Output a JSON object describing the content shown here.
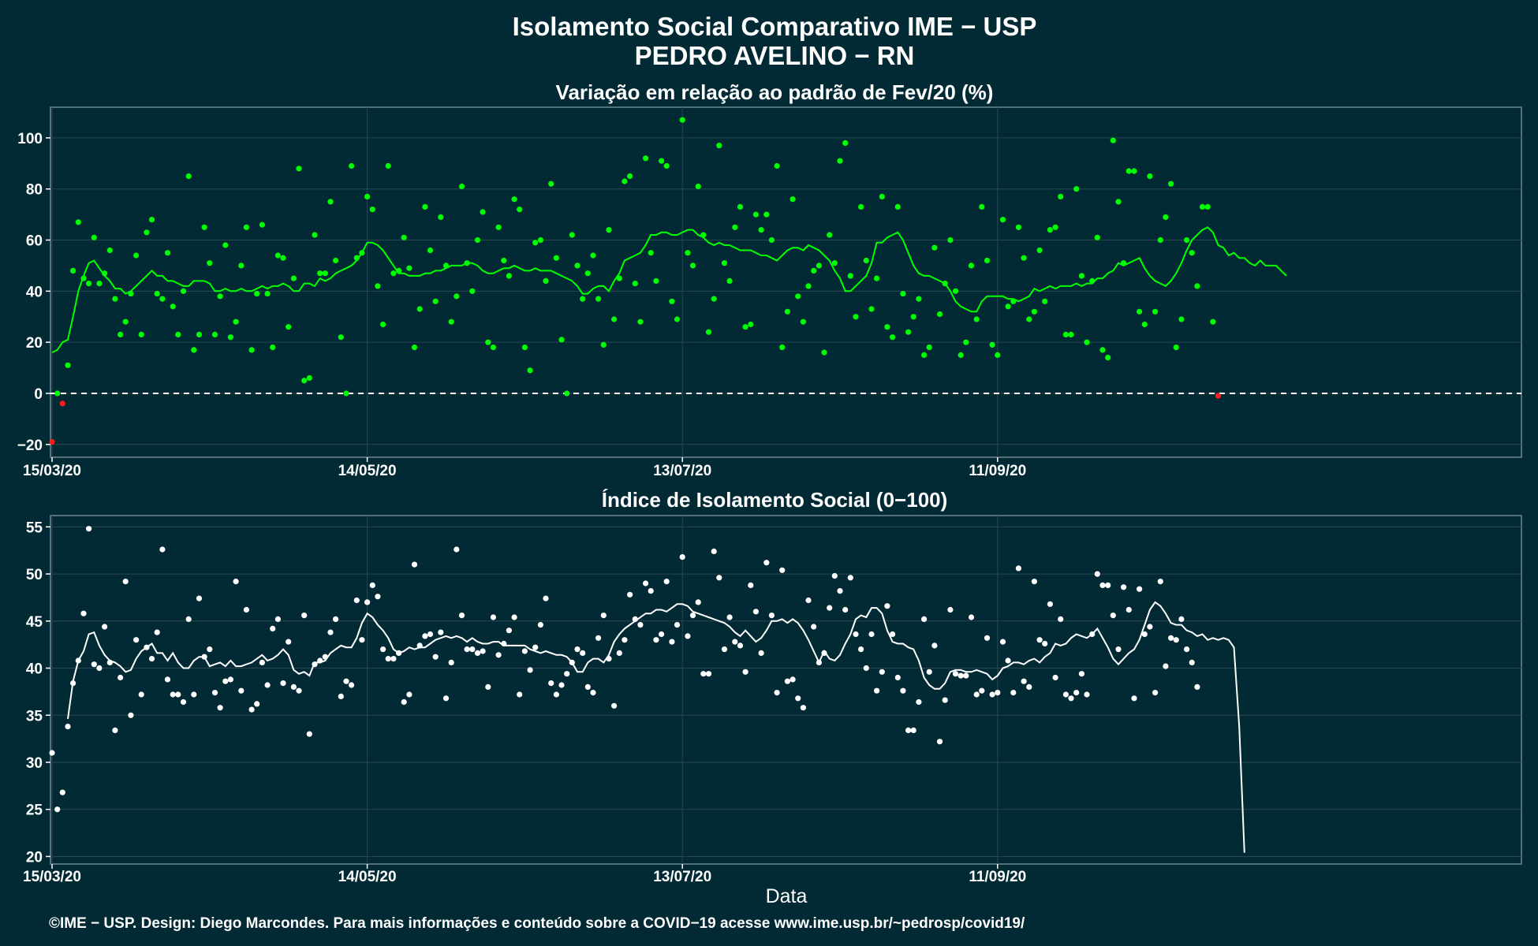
{
  "header": {
    "title_line1": "Isolamento Social Comparativo IME − USP",
    "title_line2": "PEDRO AVELINO − RN"
  },
  "footer": {
    "credit": "©IME − USP. Design: Diego Marcondes. Para mais informações e conteúdo sobre a COVID−19 acesse www.ime.usp.br/~pedrosp/covid19/"
  },
  "colors": {
    "background": "#022a35",
    "positive": "#00ff00",
    "negative": "#ff1a1a",
    "index": "#ffffff",
    "grid": "#2a4650"
  },
  "chart_data": [
    {
      "type": "scatter",
      "title": "Variação em relação ao padrão de Fev/20 (%)",
      "xlabel": "",
      "ylabel": "",
      "x_start": "15/03/20",
      "x_ticks": [
        {
          "day": 0,
          "label": "15/03/20"
        },
        {
          "day": 60,
          "label": "14/05/20"
        },
        {
          "day": 120,
          "label": "13/07/20"
        },
        {
          "day": 180,
          "label": "11/09/20"
        }
      ],
      "ylim": [
        -25,
        112
      ],
      "y_ticks": [
        -20,
        0,
        20,
        40,
        60,
        80,
        100
      ],
      "reference_line": {
        "y": 0,
        "style": "dashed"
      },
      "grid": true,
      "series": [
        {
          "kind": "points",
          "values": [
            -19,
            0,
            -4,
            11,
            48,
            67,
            45,
            43,
            61,
            43,
            47,
            56,
            37,
            23,
            28,
            39,
            54,
            23,
            63,
            68,
            39,
            37,
            55,
            34,
            23,
            40,
            85,
            17,
            23,
            65,
            51,
            23,
            38,
            58,
            22,
            28,
            50,
            65,
            17,
            39,
            66,
            39,
            18,
            54,
            53,
            26,
            45,
            88,
            5,
            6,
            62,
            47,
            47,
            75,
            52,
            22,
            0,
            89,
            53,
            55,
            77,
            72,
            42,
            27,
            89,
            47,
            48,
            61,
            49,
            18,
            33,
            73,
            56,
            36,
            69,
            50,
            28,
            38,
            81,
            51,
            40,
            60,
            71,
            20,
            18,
            65,
            52,
            46,
            76,
            72,
            18,
            9,
            59,
            60,
            44,
            82,
            53,
            21,
            0,
            62,
            50,
            37,
            47,
            54,
            37,
            19,
            64,
            29,
            45,
            83,
            85,
            43,
            28,
            92,
            55,
            44,
            91,
            89,
            36,
            29,
            107,
            55,
            50,
            81,
            62,
            24,
            37,
            97,
            51,
            44,
            65,
            73,
            26,
            27,
            70,
            64,
            70,
            60,
            89,
            18,
            32,
            76,
            38,
            28,
            42,
            48,
            50,
            16,
            62,
            51,
            91,
            98,
            46,
            30,
            73,
            52,
            33,
            45,
            77,
            26,
            22,
            73,
            39,
            24,
            30,
            37,
            15,
            18,
            57,
            31,
            43,
            60,
            40,
            15,
            20,
            50,
            29,
            73,
            52,
            19,
            15,
            68,
            34,
            36,
            65,
            53,
            29,
            32,
            56,
            36,
            64,
            65,
            77,
            23,
            23,
            80,
            46,
            20,
            44,
            61,
            17,
            14,
            99,
            75,
            51,
            87,
            87,
            32,
            27,
            85,
            32,
            60,
            69,
            82,
            18,
            29,
            60,
            55,
            42,
            73,
            73,
            28,
            -1
          ]
        },
        {
          "kind": "moving_average",
          "values": [
            16,
            17,
            20,
            21,
            30,
            40,
            46,
            51,
            52,
            49,
            46,
            44,
            41,
            41,
            39,
            40,
            42,
            44,
            46,
            48,
            46,
            46,
            44,
            44,
            43,
            42,
            42,
            44,
            44,
            44,
            43,
            40,
            40,
            41,
            40,
            40,
            41,
            40,
            40,
            41,
            42,
            41,
            42,
            42,
            43,
            42,
            40,
            40,
            43,
            43,
            42,
            45,
            44,
            45,
            47,
            48,
            49,
            50,
            52,
            55,
            59,
            59,
            58,
            56,
            53,
            50,
            47,
            47,
            46,
            46,
            46,
            47,
            47,
            48,
            48,
            49,
            50,
            50,
            50,
            51,
            51,
            50,
            48,
            47,
            47,
            48,
            49,
            49,
            50,
            49,
            48,
            48,
            49,
            48,
            48,
            48,
            47,
            46,
            45,
            44,
            42,
            39,
            39,
            41,
            42,
            42,
            40,
            44,
            47,
            52,
            53,
            54,
            55,
            58,
            62,
            62,
            63,
            63,
            62,
            62,
            63,
            64,
            64,
            62,
            61,
            59,
            58,
            59,
            58,
            58,
            57,
            56,
            56,
            56,
            55,
            54,
            54,
            53,
            52,
            54,
            56,
            57,
            57,
            56,
            58,
            57,
            56,
            54,
            52,
            48,
            45,
            40,
            40,
            42,
            44,
            46,
            51,
            59,
            59,
            61,
            62,
            63,
            60,
            55,
            50,
            47,
            46,
            46,
            45,
            44,
            43,
            40,
            36,
            34,
            33,
            32,
            32,
            36,
            38,
            38,
            38,
            38,
            37,
            37,
            36,
            37,
            38,
            41,
            40,
            41,
            42,
            41,
            42,
            42,
            42,
            43,
            42,
            43,
            43,
            45,
            45,
            47,
            48,
            51,
            50,
            51,
            52,
            53,
            49,
            46,
            44,
            43,
            42,
            44,
            47,
            51,
            56,
            60,
            62,
            64,
            65,
            63,
            58,
            57,
            54,
            55,
            53,
            53,
            51,
            50,
            52,
            50,
            50,
            50,
            48,
            46
          ]
        }
      ]
    },
    {
      "type": "scatter",
      "title": "Índice de Isolamento Social (0−100)",
      "xlabel": "Data",
      "ylabel": "",
      "x_start": "15/03/20",
      "x_ticks": [
        {
          "day": 0,
          "label": "15/03/20"
        },
        {
          "day": 60,
          "label": "14/05/20"
        },
        {
          "day": 120,
          "label": "13/07/20"
        },
        {
          "day": 180,
          "label": "11/09/20"
        }
      ],
      "ylim": [
        19.2,
        56.2
      ],
      "y_ticks": [
        20,
        25,
        30,
        35,
        40,
        45,
        50,
        55
      ],
      "grid": true,
      "series": [
        {
          "kind": "points",
          "values": [
            31,
            25,
            26.8,
            33.8,
            38.4,
            40.8,
            45.8,
            54.8,
            40.4,
            40,
            44.4,
            40.6,
            33.4,
            39,
            49.2,
            35,
            43,
            37.2,
            42.2,
            41,
            43.8,
            52.6,
            38.8,
            37.2,
            37.2,
            36.4,
            45.2,
            37.2,
            47.4,
            41.2,
            42,
            37.4,
            35.8,
            38.6,
            38.8,
            49.2,
            37.6,
            46.2,
            35.6,
            36.2,
            40.6,
            38.2,
            44.2,
            45.2,
            38.4,
            42.8,
            38,
            37.6,
            45.6,
            33,
            40.4,
            40.8,
            41.2,
            43.8,
            45.2,
            37,
            38.6,
            38.2,
            47.2,
            43,
            47,
            48.8,
            47.6,
            42,
            41,
            41,
            41.6,
            36.4,
            37.2,
            51,
            42.4,
            43.4,
            43.6,
            41.2,
            43.8,
            36.8,
            40.6,
            52.6,
            45.6,
            42,
            42,
            41.6,
            41.8,
            38,
            45.4,
            41.4,
            42.6,
            44,
            45.4,
            37.2,
            41.8,
            39.8,
            42.2,
            44.6,
            47.4,
            38.4,
            37.2,
            38.2,
            39.4,
            40.6,
            42,
            41.6,
            38,
            37.4,
            43.2,
            45.6,
            41,
            36,
            41.6,
            43,
            47.8,
            45.2,
            44.6,
            49,
            48.2,
            43,
            43.6,
            49.2,
            42.8,
            44.6,
            51.8,
            43.4,
            45.6,
            47,
            39.4,
            39.4,
            52.4,
            49.6,
            42,
            45.4,
            42.8,
            42.4,
            39.6,
            48.8,
            46,
            41.6,
            51.2,
            45.6,
            37.4,
            50.4,
            38.6,
            38.8,
            36.8,
            35.8,
            47.2,
            44.4,
            40.6,
            41.6,
            46.4,
            49.8,
            48.2,
            46.2,
            49.6,
            43.6,
            42,
            40,
            43.6,
            37.6,
            39.6,
            46.6,
            43.6,
            39,
            37.6,
            33.4,
            33.4,
            36.4,
            45.2,
            39.6,
            42.4,
            32.2,
            36.6,
            46.2,
            39.4,
            39.2,
            39.2,
            45.4,
            37.2,
            37.6,
            43.2,
            37.2,
            37.4,
            42.8,
            40.8,
            37.4,
            50.6,
            38.6,
            38,
            49.2,
            43,
            42.6,
            46.8,
            39,
            45.2,
            37.2,
            36.8,
            37.4,
            39.4,
            37.2,
            43.6,
            50,
            48.8,
            48.8,
            45.6,
            42,
            48.6,
            46.2,
            36.8,
            48.4,
            43.6,
            44.4,
            37.4,
            49.2,
            40.2,
            43.2,
            43,
            45.2,
            42,
            40.6,
            38
          ]
        },
        {
          "kind": "moving_average",
          "values": [
            null,
            null,
            null,
            34.6,
            38.6,
            40.8,
            41.8,
            43.6,
            43.8,
            42.4,
            41.4,
            40.8,
            40.6,
            40.2,
            39.6,
            39.8,
            41,
            41.8,
            42.2,
            42.6,
            41.6,
            41.6,
            40.8,
            41.6,
            40.6,
            40,
            40,
            40.8,
            41.2,
            41.2,
            40.2,
            40.4,
            40.6,
            40.2,
            40.8,
            40.2,
            40.2,
            40.4,
            40.6,
            41,
            41.4,
            40.8,
            41,
            41.4,
            42,
            41.4,
            39.8,
            39.4,
            39.6,
            39.2,
            40.6,
            40.6,
            40.8,
            41.6,
            42,
            42.4,
            42.2,
            42.2,
            43.2,
            44.8,
            45.8,
            45.4,
            44.6,
            44,
            43.2,
            42,
            41.6,
            41.8,
            42.2,
            42,
            42.2,
            42.2,
            42.6,
            43,
            43.2,
            43.4,
            43.2,
            43.4,
            43.2,
            42.8,
            43.2,
            42.8,
            42.6,
            42.6,
            42.8,
            42.8,
            42.4,
            42.4,
            42.4,
            42.4,
            42.4,
            42,
            41.8,
            41.6,
            41.8,
            41.6,
            41.4,
            41.4,
            41.2,
            40.6,
            39.6,
            39.6,
            40.6,
            41,
            41,
            40.6,
            41.4,
            42.8,
            43.6,
            44.2,
            44.6,
            45,
            45.4,
            45.8,
            45.8,
            46.2,
            46.2,
            46,
            46.4,
            46.8,
            46.8,
            46.6,
            46,
            45.8,
            45.6,
            45.4,
            45.2,
            45,
            44.8,
            44.4,
            43.8,
            43.4,
            44,
            43.4,
            42.8,
            43.2,
            44,
            45,
            45,
            45.2,
            44.8,
            45.2,
            44.8,
            44,
            43,
            41.8,
            40.6,
            41.8,
            41,
            40.8,
            41.4,
            42.6,
            43.6,
            45.2,
            45.6,
            45.4,
            46.4,
            46.4,
            45.8,
            44,
            42.8,
            42.6,
            42.6,
            42.2,
            42,
            40.8,
            39,
            38.2,
            37.8,
            37.8,
            38.4,
            39.6,
            39.8,
            39.8,
            39.6,
            39.6,
            39.8,
            39.6,
            39.4,
            38.8,
            39.2,
            40,
            40.2,
            40.6,
            40.6,
            40.4,
            40.8,
            41,
            40.6,
            41.2,
            41.6,
            42.6,
            42.4,
            42.6,
            43.2,
            43.6,
            43.4,
            43.2,
            43.6,
            44.2,
            43.2,
            42.2,
            41,
            40.4,
            41,
            41.6,
            42,
            43,
            44.6,
            46.2,
            47,
            46.6,
            45.8,
            44.8,
            44.6,
            44.6,
            44,
            43.8,
            43.4,
            43.6,
            43,
            43.2,
            43,
            43.2,
            43,
            42.2,
            33.8,
            20.4
          ]
        }
      ]
    }
  ]
}
